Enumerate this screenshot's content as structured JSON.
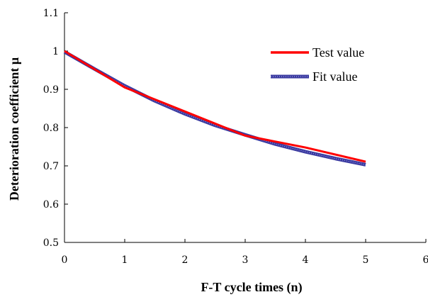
{
  "chart_data": {
    "type": "line",
    "title": "",
    "xlabel": "F-T  cycle  times (n)",
    "ylabel": "Deterioration  coefficient  μ",
    "xlim": [
      0,
      6
    ],
    "ylim": [
      0.5,
      1.1
    ],
    "xticks": [
      0,
      1,
      2,
      3,
      4,
      5,
      6
    ],
    "xtick_labels": [
      "0",
      "1",
      "2",
      "3",
      "4",
      "5",
      "6"
    ],
    "yticks": [
      0.5,
      0.6,
      0.7,
      0.8,
      0.9,
      1.0,
      1.1
    ],
    "ytick_labels": [
      "0.5",
      "0.6",
      "0.7",
      "0.8",
      "0.9",
      "1",
      "1.1"
    ],
    "grid": false,
    "legend_position": "top-right",
    "series": [
      {
        "name": "Test value",
        "color": "#ff0000",
        "style": "solid",
        "x": [
          0,
          1,
          2,
          3,
          4,
          5
        ],
        "y": [
          1.0,
          0.905,
          0.842,
          0.779,
          0.748,
          0.711
        ]
      },
      {
        "name": "Fit value",
        "color": "#3a3aa0",
        "style": "dotted-thick",
        "x": [
          0,
          0.5,
          1,
          1.5,
          2,
          2.5,
          3,
          3.5,
          4,
          4.5,
          5
        ],
        "y": [
          0.998,
          0.953,
          0.909,
          0.87,
          0.836,
          0.806,
          0.781,
          0.757,
          0.737,
          0.719,
          0.703
        ]
      }
    ]
  }
}
